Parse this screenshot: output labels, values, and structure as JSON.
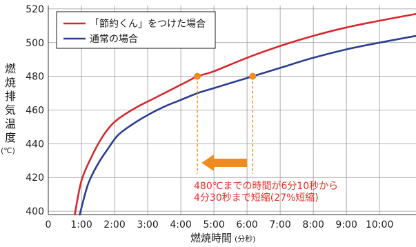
{
  "colors": {
    "series_with": "#d7272e",
    "series_normal": "#2a3e8f",
    "highlight": "#f08c1e",
    "annotation": "#e5302a",
    "grid": "#999999"
  },
  "y_title": "燃焼排気温度",
  "y_unit": "(℃)",
  "x_title": "燃焼時間",
  "x_unit": "(分秒)",
  "annotation": {
    "line1": "480℃までの時間が6分10秒から",
    "line2": "4分30秒まで短縮(27%短縮)"
  },
  "chart_data": {
    "type": "line",
    "x_unit_note": "minutes",
    "xlim": [
      0,
      11.1
    ],
    "ylim": [
      398,
      522
    ],
    "x_ticks": [
      0,
      1,
      2,
      3,
      4,
      5,
      6,
      7,
      8,
      9,
      10
    ],
    "x_tick_labels": [
      "0",
      "1:00",
      "2:00",
      "3:00",
      "4:00",
      "5:00",
      "6:00",
      "7:00",
      "8:00",
      "9:00",
      "10:00"
    ],
    "y_ticks": [
      400,
      420,
      440,
      460,
      480,
      500,
      520
    ],
    "y_tick_labels": [
      "400",
      "420",
      "440",
      "460",
      "480",
      "500",
      "520"
    ],
    "grid": true,
    "legend_position": "top-left",
    "series": [
      {
        "name": "「節約くん」をつけた場合",
        "color": "#d7272e",
        "x": [
          0.8,
          1.0,
          1.3,
          1.6,
          1.9,
          2.2,
          2.7,
          3.2,
          3.7,
          4.2,
          4.5,
          5.0,
          6.0,
          7.0,
          8.0,
          9.0,
          10.0,
          11.1
        ],
        "y": [
          398,
          418,
          432,
          443,
          451,
          456,
          462,
          467,
          472,
          477,
          480,
          483,
          491,
          498,
          504,
          509,
          513,
          517
        ]
      },
      {
        "name": "通常の場合",
        "color": "#2a3e8f",
        "x": [
          0.95,
          1.2,
          1.5,
          1.8,
          2.1,
          2.5,
          3.0,
          3.5,
          4.0,
          4.5,
          5.0,
          5.5,
          6.17,
          7.0,
          8.0,
          9.0,
          10.0,
          11.1
        ],
        "y": [
          398,
          416,
          428,
          437,
          445,
          451,
          457,
          462,
          466,
          470,
          473,
          476,
          480,
          485,
          491,
          496,
          500,
          504
        ]
      }
    ],
    "markers": [
      {
        "x": 4.5,
        "y": 480
      },
      {
        "x": 6.17,
        "y": 480
      }
    ]
  }
}
